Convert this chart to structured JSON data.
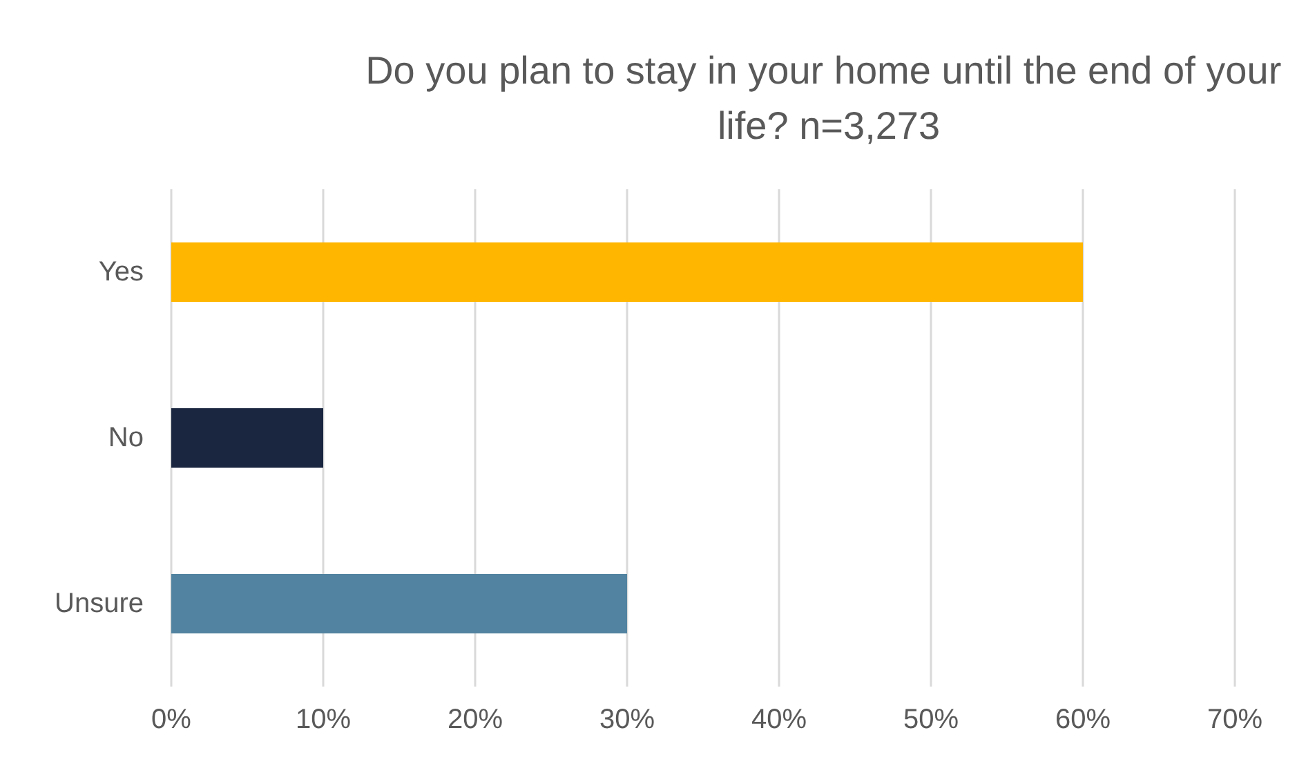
{
  "chart_data": {
    "type": "bar",
    "orientation": "horizontal",
    "title": "Do you plan to stay in your home until the end of your life? n=3,273",
    "categories": [
      "Yes",
      "No",
      "Unsure"
    ],
    "values": [
      60,
      10,
      30
    ],
    "colors": [
      "#ffb600",
      "#1a2640",
      "#5283a0"
    ],
    "xlim": [
      0,
      70
    ],
    "xticks": [
      {
        "value": 0,
        "label": "0%"
      },
      {
        "value": 10,
        "label": "10%"
      },
      {
        "value": 20,
        "label": "20%"
      },
      {
        "value": 30,
        "label": "30%"
      },
      {
        "value": 40,
        "label": "40%"
      },
      {
        "value": 50,
        "label": "50%"
      },
      {
        "value": 60,
        "label": "60%"
      },
      {
        "value": 70,
        "label": "70%"
      }
    ],
    "grid": "x"
  }
}
